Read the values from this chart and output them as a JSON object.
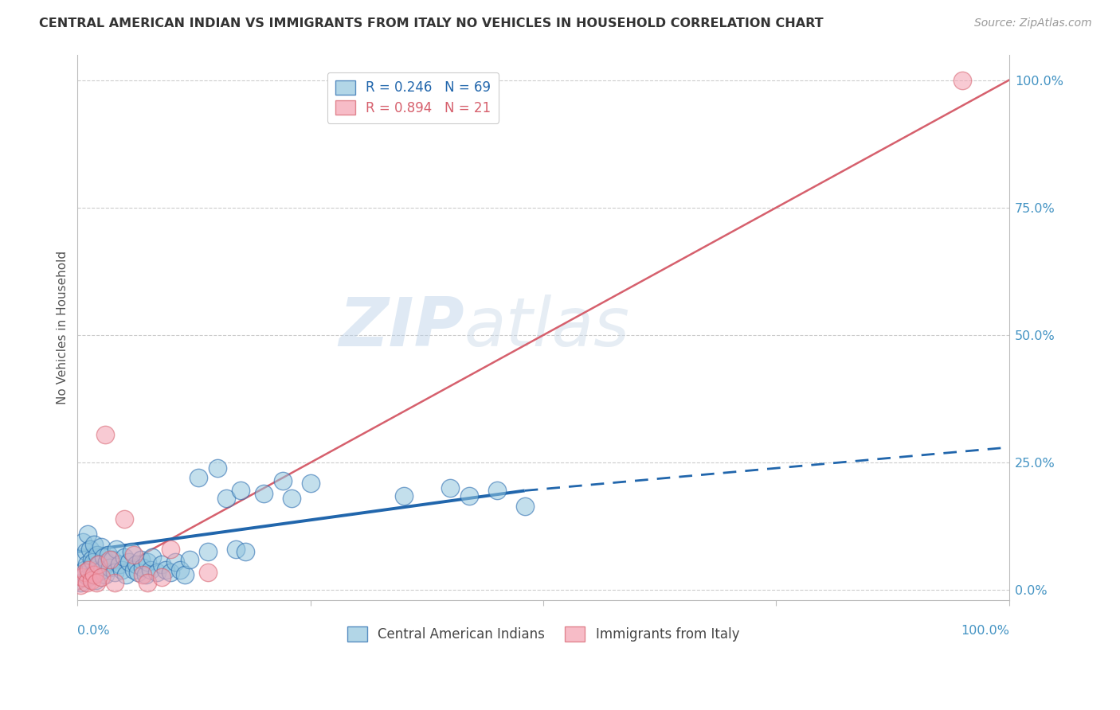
{
  "title": "CENTRAL AMERICAN INDIAN VS IMMIGRANTS FROM ITALY NO VEHICLES IN HOUSEHOLD CORRELATION CHART",
  "source": "Source: ZipAtlas.com",
  "ylabel": "No Vehicles in Household",
  "ytick_values": [
    0,
    25,
    50,
    75,
    100
  ],
  "xlim": [
    0,
    100
  ],
  "ylim": [
    -2,
    105
  ],
  "legend_r1": "R = 0.246",
  "legend_n1": "N = 69",
  "legend_r2": "R = 0.894",
  "legend_n2": "N = 21",
  "color_blue": "#92c5de",
  "color_pink": "#f4a0b0",
  "color_line_blue": "#2166ac",
  "color_line_pink": "#d6606d",
  "color_title": "#333333",
  "color_source": "#999999",
  "color_axis_label": "#555555",
  "color_tick_blue": "#4393c3",
  "watermark_zip": "ZIP",
  "watermark_atlas": "atlas",
  "scatter_blue": [
    [
      0.3,
      1.5
    ],
    [
      0.5,
      6.5
    ],
    [
      0.6,
      9.5
    ],
    [
      0.7,
      4.0
    ],
    [
      0.8,
      3.0
    ],
    [
      0.9,
      7.5
    ],
    [
      1.0,
      5.0
    ],
    [
      1.1,
      11.0
    ],
    [
      1.2,
      2.5
    ],
    [
      1.3,
      8.0
    ],
    [
      1.4,
      4.5
    ],
    [
      1.5,
      6.0
    ],
    [
      1.6,
      3.0
    ],
    [
      1.7,
      5.5
    ],
    [
      1.8,
      9.0
    ],
    [
      1.9,
      2.0
    ],
    [
      2.0,
      4.0
    ],
    [
      2.1,
      7.0
    ],
    [
      2.2,
      3.5
    ],
    [
      2.3,
      5.0
    ],
    [
      2.5,
      8.5
    ],
    [
      2.6,
      4.0
    ],
    [
      2.8,
      6.5
    ],
    [
      3.0,
      3.0
    ],
    [
      3.1,
      5.5
    ],
    [
      3.3,
      7.0
    ],
    [
      3.5,
      4.5
    ],
    [
      3.7,
      6.0
    ],
    [
      4.0,
      3.5
    ],
    [
      4.2,
      8.0
    ],
    [
      4.5,
      5.0
    ],
    [
      4.8,
      4.0
    ],
    [
      5.0,
      6.5
    ],
    [
      5.2,
      3.0
    ],
    [
      5.5,
      5.5
    ],
    [
      5.8,
      7.5
    ],
    [
      6.0,
      4.0
    ],
    [
      6.3,
      5.0
    ],
    [
      6.5,
      3.5
    ],
    [
      6.8,
      6.0
    ],
    [
      7.0,
      4.5
    ],
    [
      7.3,
      3.0
    ],
    [
      7.5,
      5.5
    ],
    [
      7.8,
      4.0
    ],
    [
      8.0,
      6.5
    ],
    [
      8.5,
      3.5
    ],
    [
      9.0,
      5.0
    ],
    [
      9.5,
      4.0
    ],
    [
      10.0,
      3.5
    ],
    [
      10.5,
      5.5
    ],
    [
      11.0,
      4.0
    ],
    [
      11.5,
      3.0
    ],
    [
      12.0,
      6.0
    ],
    [
      13.0,
      22.0
    ],
    [
      14.0,
      7.5
    ],
    [
      15.0,
      24.0
    ],
    [
      16.0,
      18.0
    ],
    [
      17.0,
      8.0
    ],
    [
      17.5,
      19.5
    ],
    [
      18.0,
      7.5
    ],
    [
      20.0,
      19.0
    ],
    [
      22.0,
      21.5
    ],
    [
      23.0,
      18.0
    ],
    [
      25.0,
      21.0
    ],
    [
      35.0,
      18.5
    ],
    [
      40.0,
      20.0
    ],
    [
      42.0,
      18.5
    ],
    [
      45.0,
      19.5
    ],
    [
      48.0,
      16.5
    ]
  ],
  "scatter_pink": [
    [
      0.3,
      1.0
    ],
    [
      0.5,
      2.5
    ],
    [
      0.8,
      3.5
    ],
    [
      1.0,
      1.5
    ],
    [
      1.2,
      4.0
    ],
    [
      1.5,
      2.0
    ],
    [
      1.8,
      3.0
    ],
    [
      2.0,
      1.5
    ],
    [
      2.2,
      5.0
    ],
    [
      2.5,
      2.5
    ],
    [
      3.0,
      30.5
    ],
    [
      3.5,
      6.0
    ],
    [
      4.0,
      1.5
    ],
    [
      5.0,
      14.0
    ],
    [
      6.0,
      7.0
    ],
    [
      7.0,
      3.0
    ],
    [
      7.5,
      1.5
    ],
    [
      9.0,
      2.5
    ],
    [
      10.0,
      8.0
    ],
    [
      14.0,
      3.5
    ],
    [
      95.0,
      100.0
    ]
  ],
  "solid_blue_end_x": 48,
  "solid_blue_end_y": 19.5,
  "trendline_blue_x0": 0.0,
  "trendline_blue_y0": 7.5,
  "trendline_blue_x1": 100.0,
  "trendline_blue_y1": 28.0,
  "trendline_pink_x0": 0.0,
  "trendline_pink_y0": 0.0,
  "trendline_pink_x1": 100.0,
  "trendline_pink_y1": 100.0
}
